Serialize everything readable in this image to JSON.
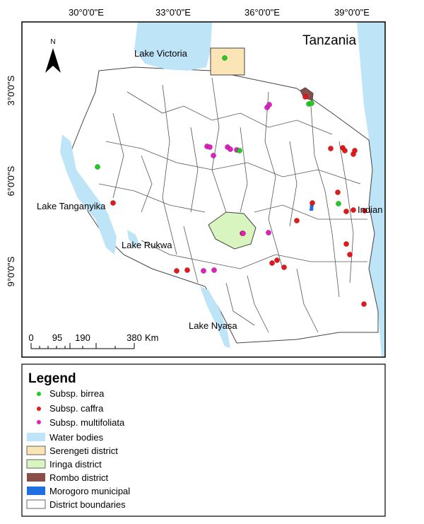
{
  "map": {
    "title": "Tanzania",
    "north": "N",
    "lon_labels": [
      "30°0'0\"E",
      "33°0'0\"E",
      "36°0'0\"E",
      "39°0'0\"E"
    ],
    "lat_labels": [
      "3°0'0\"S",
      "6°0'0\"S",
      "9°0'0\"S"
    ],
    "place_labels": [
      "Lake Victoria",
      "Lake Tanganyika",
      "Lake Rukwa",
      "Lake Nyasa",
      "Indian Ocean"
    ],
    "scale_bar": {
      "ticks": [
        "0",
        "95",
        "190",
        "380"
      ],
      "unit": "Km"
    }
  },
  "legend": {
    "title": "Legend",
    "items": [
      "Subsp. birrea",
      "Subsp. caffra",
      "Subsp. multifoliata",
      "Water bodies",
      "Serengeti district",
      "Iringa district",
      "Rombo district",
      "Morogoro municipal",
      "District boundaries"
    ]
  }
}
